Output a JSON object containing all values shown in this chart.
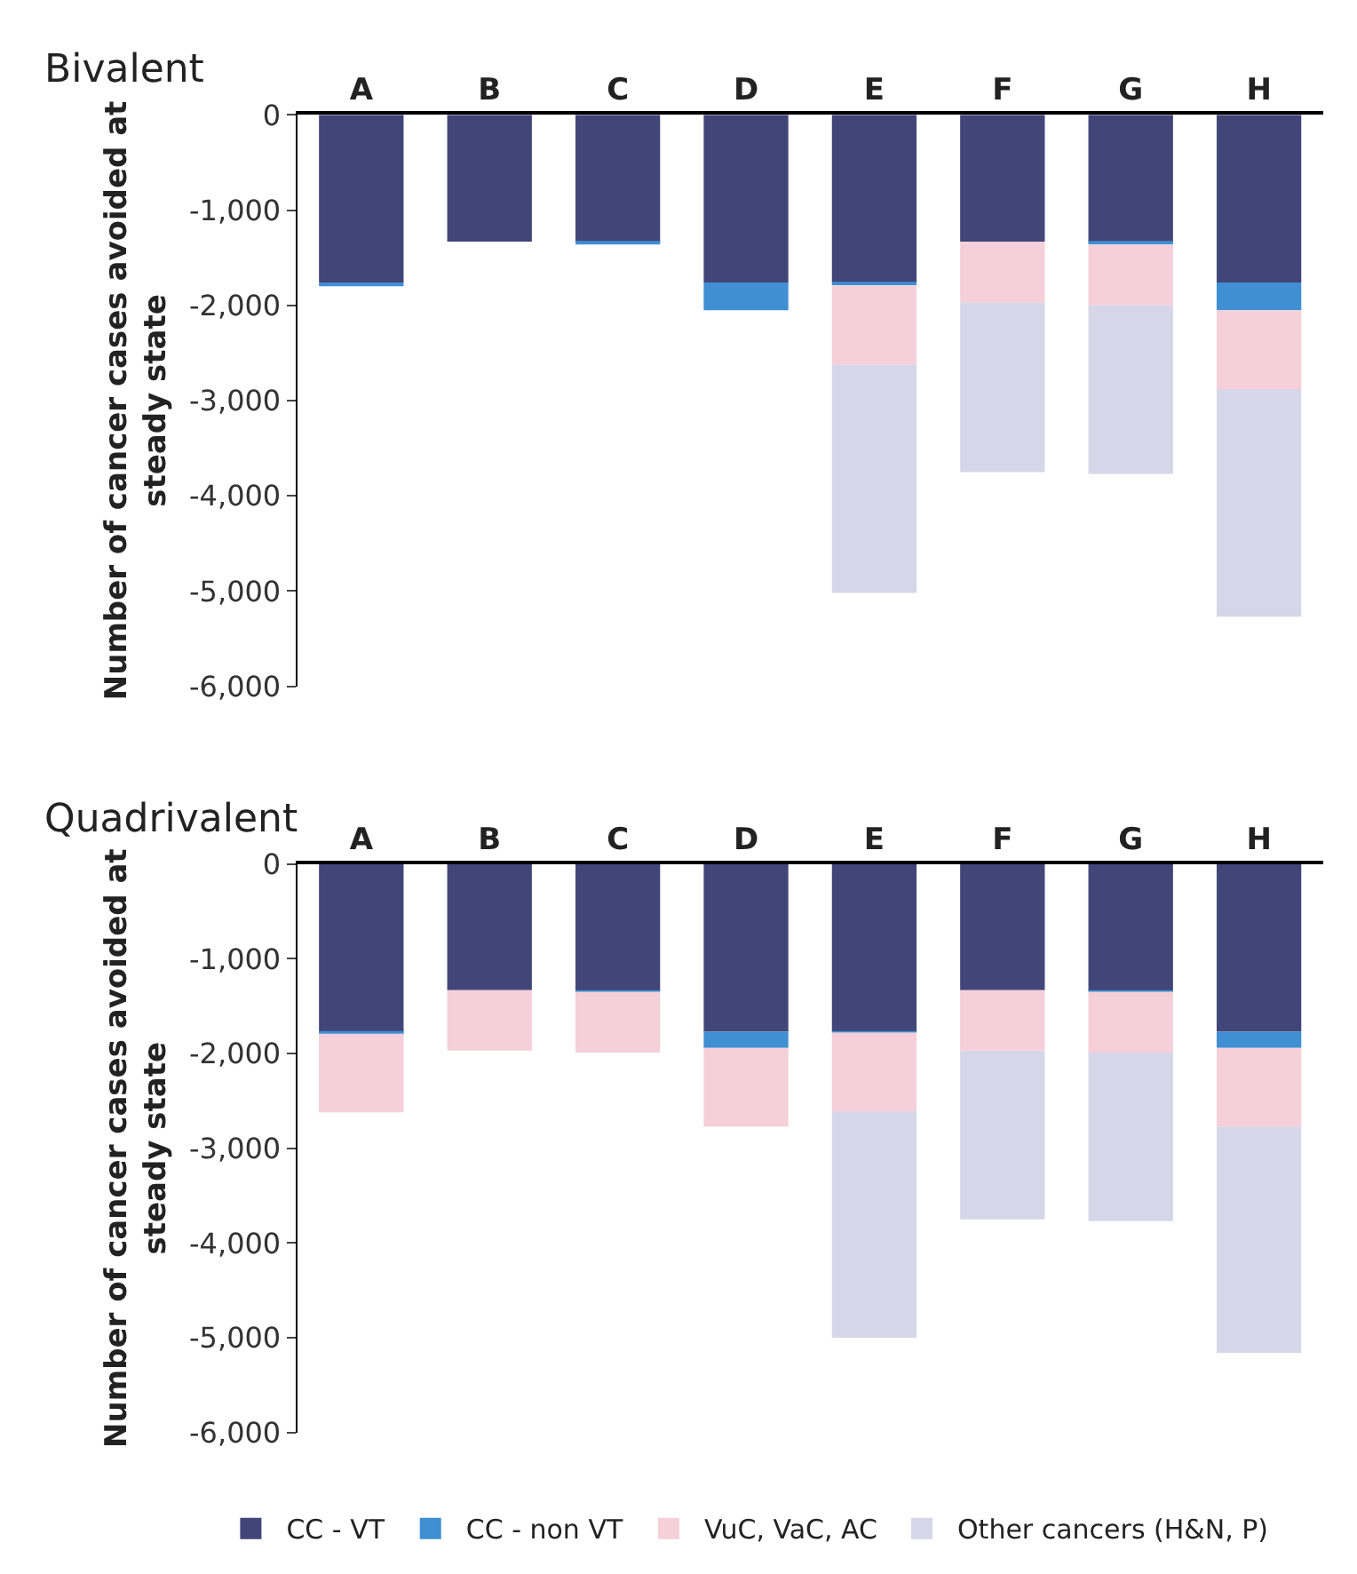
{
  "chart_data": [
    {
      "type": "bar",
      "stacked": true,
      "title": "Bivalent",
      "ylabel": "Number of cancer cases avoided at steady state",
      "categories": [
        "A",
        "B",
        "C",
        "D",
        "E",
        "F",
        "G",
        "H"
      ],
      "ylim": [
        -6000,
        0
      ],
      "yticks": [
        {
          "value": -6000,
          "label": "-6,000"
        },
        {
          "value": -5000,
          "label": "-5,000"
        },
        {
          "value": -4000,
          "label": "-4,000"
        },
        {
          "value": -3000,
          "label": "-3,000"
        },
        {
          "value": -2000,
          "label": "-2,000"
        },
        {
          "value": -1000,
          "label": "-1,000"
        },
        0
      ],
      "series": [
        {
          "color": "#414577",
          "values": [
            -1760,
            -1330,
            -1340,
            -1760,
            -1760,
            -1330,
            -1340,
            -1760
          ]
        },
        {
          "color": "#3f8fd2",
          "values": [
            -40,
            0,
            -20,
            -290,
            -30,
            0,
            -20,
            -290
          ]
        },
        {
          "color": "#f5cfd9",
          "values": [
            0,
            0,
            0,
            0,
            -830,
            -640,
            -640,
            -830
          ]
        },
        {
          "color": "#d7d6e8",
          "values": [
            0,
            0,
            0,
            0,
            -2400,
            -1780,
            -1770,
            -2390
          ]
        }
      ]
    },
    {
      "type": "bar",
      "stacked": true,
      "title": "Quadrivalent",
      "ylabel": "Number of cancer cases avoided at steady state",
      "categories": [
        "A",
        "B",
        "C",
        "D",
        "E",
        "F",
        "G",
        "H"
      ],
      "ylim": [
        -6000,
        0
      ],
      "yticks": [
        {
          "value": -6000,
          "label": "-6,000"
        },
        {
          "value": -5000,
          "label": "-5,000"
        },
        {
          "value": -4000,
          "label": "-4,000"
        },
        {
          "value": -3000,
          "label": "-3,000"
        },
        {
          "value": -2000,
          "label": "-2,000"
        },
        {
          "value": -1000,
          "label": "-1,000"
        },
        0
      ],
      "legend": "bottom",
      "series": [
        {
          "name": "CC - VT",
          "color": "#414577",
          "values": [
            -1780,
            -1330,
            -1340,
            -1770,
            -1770,
            -1330,
            -1340,
            -1770
          ]
        },
        {
          "name": "CC - non VT",
          "color": "#3f8fd2",
          "values": [
            -10,
            0,
            -10,
            -170,
            -10,
            0,
            -10,
            -170
          ]
        },
        {
          "name": "VuC, VaC, AC",
          "color": "#f5cfd9",
          "values": [
            -830,
            -640,
            -640,
            -830,
            -830,
            -640,
            -640,
            -830
          ]
        },
        {
          "name": "Other cancers (H&N, P)",
          "color": "#d7d6e8",
          "values": [
            0,
            0,
            0,
            0,
            -2390,
            -1780,
            -1780,
            -2390
          ]
        }
      ]
    }
  ]
}
